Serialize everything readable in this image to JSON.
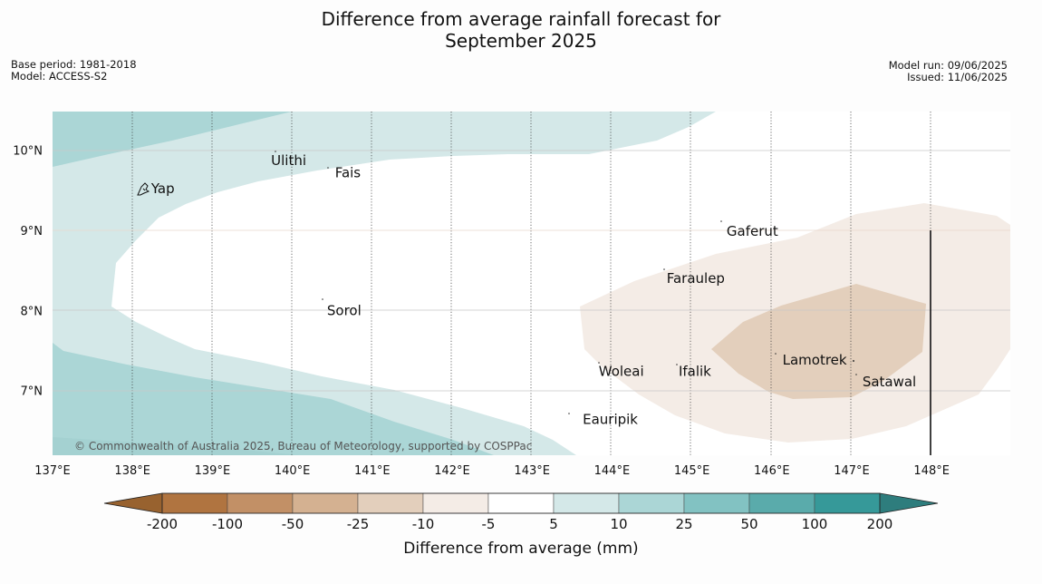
{
  "title": {
    "line1": "Difference from average rainfall forecast for",
    "line2": "September 2025"
  },
  "meta": {
    "base_period": "Base period: 1981-2018",
    "model": "Model: ACCESS-S2",
    "model_run": "Model run: 09/06/2025",
    "issued": "Issued: 11/06/2025"
  },
  "map": {
    "lon_range": [
      137,
      149
    ],
    "lat_range": [
      6.2,
      10.5
    ],
    "lon_ticks": [
      "137°E",
      "138°E",
      "139°E",
      "140°E",
      "141°E",
      "142°E",
      "143°E",
      "144°E",
      "145°E",
      "146°E",
      "147°E",
      "148°E"
    ],
    "lat_ticks": [
      "10°N",
      "9°N",
      "8°N",
      "7°N"
    ],
    "places": [
      {
        "name": "Yap",
        "lon": 138.2,
        "lat": 9.52
      },
      {
        "name": "Ulithi",
        "lon": 139.7,
        "lat": 9.87
      },
      {
        "name": "Fais",
        "lon": 140.5,
        "lat": 9.72
      },
      {
        "name": "Gaferut",
        "lon": 145.4,
        "lat": 8.99
      },
      {
        "name": "Faraulep",
        "lon": 144.65,
        "lat": 8.4
      },
      {
        "name": "Sorol",
        "lon": 140.4,
        "lat": 8.0
      },
      {
        "name": "Lamotrek",
        "lon": 146.1,
        "lat": 7.38
      },
      {
        "name": "Woleai",
        "lon": 143.8,
        "lat": 7.24
      },
      {
        "name": "Ifalik",
        "lon": 144.8,
        "lat": 7.24
      },
      {
        "name": "Satawal",
        "lon": 147.1,
        "lat": 7.11
      },
      {
        "name": "Eauripik",
        "lon": 143.6,
        "lat": 6.64
      }
    ],
    "copyright": "© Commonwealth of Australia 2025, Bureau of Meteorology, supported by COSPPac"
  },
  "colorbar": {
    "title": "Difference from average (mm)",
    "labels": [
      "-200",
      "-100",
      "-50",
      "-25",
      "-10",
      "-5",
      "5",
      "10",
      "25",
      "50",
      "100",
      "200"
    ],
    "colors": [
      "#b07440",
      "#c29066",
      "#d4b191",
      "#e3cfbc",
      "#f4ece6",
      "#ffffff",
      "#d4e8e8",
      "#abd6d6",
      "#82c2c2",
      "#5aabab",
      "#369999"
    ],
    "low_extend_color": "#98622f",
    "high_extend_color": "#2e7d7d"
  }
}
